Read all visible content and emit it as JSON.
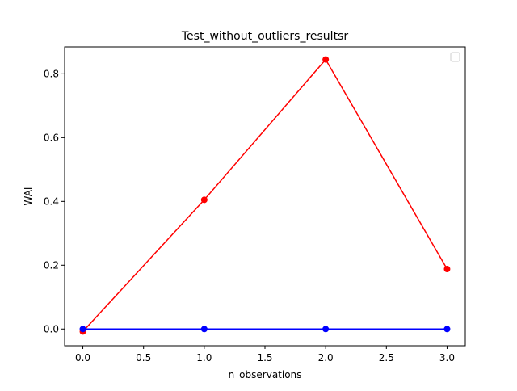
{
  "chart_data": {
    "type": "line",
    "title": "Test_without_outliers_resultsr",
    "xlabel": "n_observations",
    "ylabel": "WAI",
    "x": [
      0,
      1,
      2,
      3
    ],
    "xlim": [
      -0.15,
      3.15
    ],
    "ylim": [
      -0.0525,
      0.8845
    ],
    "xticks": [
      0.0,
      0.5,
      1.0,
      1.5,
      2.0,
      2.5,
      3.0
    ],
    "xtick_labels": [
      "0.0",
      "0.5",
      "1.0",
      "1.5",
      "2.0",
      "2.5",
      "3.0"
    ],
    "yticks": [
      0.0,
      0.2,
      0.4,
      0.6,
      0.8
    ],
    "ytick_labels": [
      "0.0",
      "0.2",
      "0.4",
      "0.6",
      "0.8"
    ],
    "grid": false,
    "legend": "top-right (empty)",
    "series": [
      {
        "values": [
          -0.008,
          0.405,
          0.845,
          0.188
        ],
        "color": "#ff0000",
        "marker": "circle"
      },
      {
        "values": [
          0.0,
          0.0,
          0.0,
          0.0
        ],
        "color": "#0000ff",
        "marker": "circle"
      }
    ]
  }
}
